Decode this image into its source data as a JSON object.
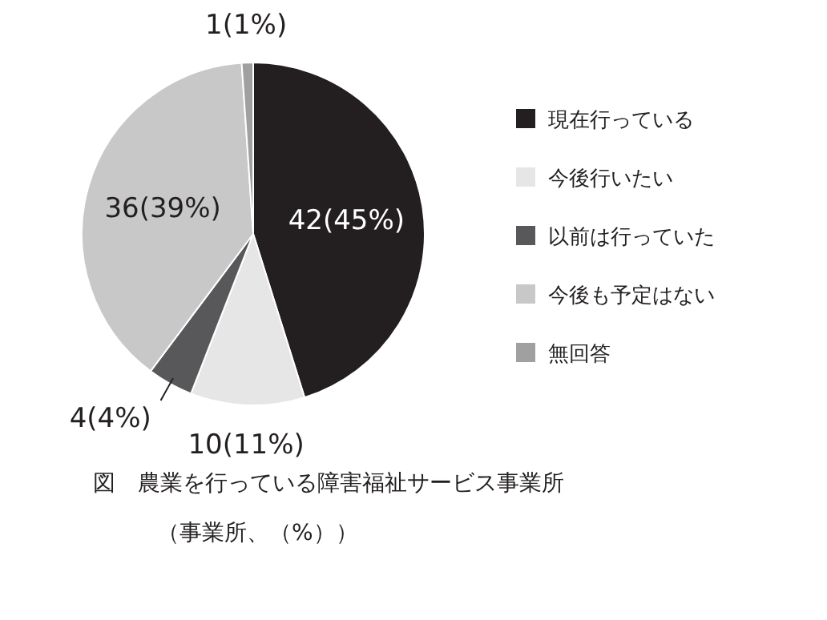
{
  "chart_data": {
    "type": "pie",
    "title": "図　農業を行っている障害福祉サービス事業所",
    "subtitle": "（事業所、（%））",
    "categories": [
      "現在行っている",
      "今後行いたい",
      "以前は行っていた",
      "今後も予定はない",
      "無回答"
    ],
    "values": [
      42,
      10,
      4,
      36,
      1
    ],
    "value_labels": [
      "42(45%)",
      "10(11%)",
      "4(4%)",
      "36(39%)",
      "1(1%)"
    ],
    "colors": [
      "#231f20",
      "#e6e6e6",
      "#58585a",
      "#c8c8c8",
      "#a0a0a0"
    ],
    "legend": "right"
  }
}
